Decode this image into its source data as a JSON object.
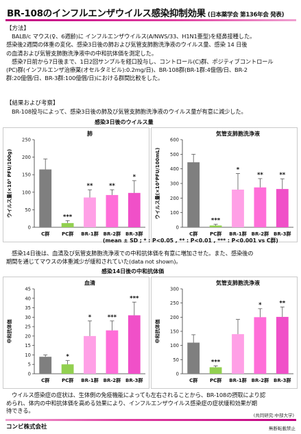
{
  "title": {
    "main": "BR-108のインフルエンザウイルス感染抑制効果",
    "sub": "(日本薬学会 第136年会 発表)"
  },
  "methods": {
    "heading": "【方法】",
    "lines": [
      "BALB/c マウス(♀、6週齢)に インフルエンザウイルス(A/NWS/33、H1N1亜型)を経鼻接種した。",
      "感染後2週間の体重の変化、感染3日後の肺および気管支肺胞洗浄液のウイルス量、感染 14 日後",
      "の血清および気管支肺胞洗浄液中の中和抗体価を測定した。",
      "感染7日前から7日後まで、1日2回サンプルを経口投与し、コントロール(C)群、ポジティブコントロール",
      "(PC)群(インフルエンザ治療薬(オセルタミビル):0.2mg/日)、BR-108群(BR-1群:4億個/日、BR-2",
      "群:20億個/日、BR-3群:100億個/日)における群間比較をした。"
    ]
  },
  "results": {
    "heading": "【結果および考察】",
    "line1": "BR-108投与によって、感染3日後の肺及び気管支肺胞洗浄液のウイルス量が有意に減少した。",
    "virus_title": "感染3日後のウイルス量",
    "stats_note": "(mean ± SD ; * : P<0.05 , ** : P<0.01 , *** : P<0.001 vs C群)",
    "para2": [
      "感染14日後は、血清及び気管支肺胞洗浄液での中和抗体価を有意に増加させた。また、感染後の",
      "期間を通じてマウスの体重減少が緩和されていた(data not shown)。"
    ],
    "antibody_title": "感染14日後の中和抗体価",
    "conclusion": [
      "ウイルス感染症の症状は、生体側の免疫機能によっても左右されることから、BR-108の摂取により認",
      "められ、体内の中和抗体価を高める効果により、インフルエンザウイルス感染症の症状緩和効果が期",
      "待できる。"
    ],
    "collab": "(共同研究:中部大学)"
  },
  "footer": {
    "company": "コンビ株式会社",
    "copy": "無断転載禁止"
  },
  "colors": {
    "C": "#7f7f7f",
    "PC": "#92d050",
    "BR1": "#ffa0e6",
    "BR2": "#ff6ed8",
    "BR3": "#f050c8",
    "accent": "#d0109a"
  },
  "chart_data": [
    {
      "type": "bar",
      "title": "肺",
      "ylabel": "ウイルス量(×10⁵ PFU/100g)",
      "categories": [
        "C群",
        "PC群",
        "BR-1群",
        "BR-2群",
        "BR-3群"
      ],
      "values": [
        165,
        12,
        85,
        92,
        98
      ],
      "errors": [
        30,
        7,
        22,
        15,
        35
      ],
      "significance": [
        "",
        "***",
        "**",
        "**",
        "*"
      ],
      "ylim": [
        0,
        250
      ],
      "yticks": [
        0,
        50,
        100,
        150,
        200,
        250
      ]
    },
    {
      "type": "bar",
      "title": "気管支肺胞洗浄液",
      "ylabel": "ウイルス量(×10⁵PFU/100mL)",
      "categories": [
        "C群",
        "PC群",
        "BR-1群",
        "BR-2群",
        "BR-3群"
      ],
      "values": [
        445,
        12,
        258,
        273,
        262
      ],
      "errors": [
        55,
        8,
        110,
        60,
        70
      ],
      "significance": [
        "",
        "***",
        "*",
        "**",
        "**"
      ],
      "ylim": [
        0,
        600
      ],
      "yticks": [
        0,
        100,
        200,
        300,
        400,
        500,
        600
      ]
    },
    {
      "type": "bar",
      "title": "血清",
      "ylabel": "中和抗体価",
      "categories": [
        "C群",
        "PC群",
        "BR-1群",
        "BR-2群",
        "BR-3群"
      ],
      "values": [
        9,
        5,
        20,
        23,
        31
      ],
      "errors": [
        1,
        2,
        8,
        5,
        7
      ],
      "significance": [
        "",
        "*",
        "*",
        "***",
        "***"
      ],
      "ylim": [
        0,
        45
      ],
      "yticks": [
        0,
        5,
        10,
        15,
        20,
        25,
        30,
        35,
        40,
        45
      ]
    },
    {
      "type": "bar",
      "title": "気管支肺胞洗浄液",
      "ylabel": "中和抗体価",
      "categories": [
        "C群",
        "PC群",
        "BR-1群",
        "BR-2群",
        "BR-3群"
      ],
      "values": [
        110,
        23,
        140,
        200,
        201
      ],
      "errors": [
        28,
        5,
        52,
        30,
        35
      ],
      "significance": [
        "",
        "***",
        "",
        "*",
        "**"
      ],
      "ylim": [
        0,
        300
      ],
      "yticks": [
        0,
        50,
        100,
        150,
        200,
        250,
        300
      ]
    }
  ]
}
